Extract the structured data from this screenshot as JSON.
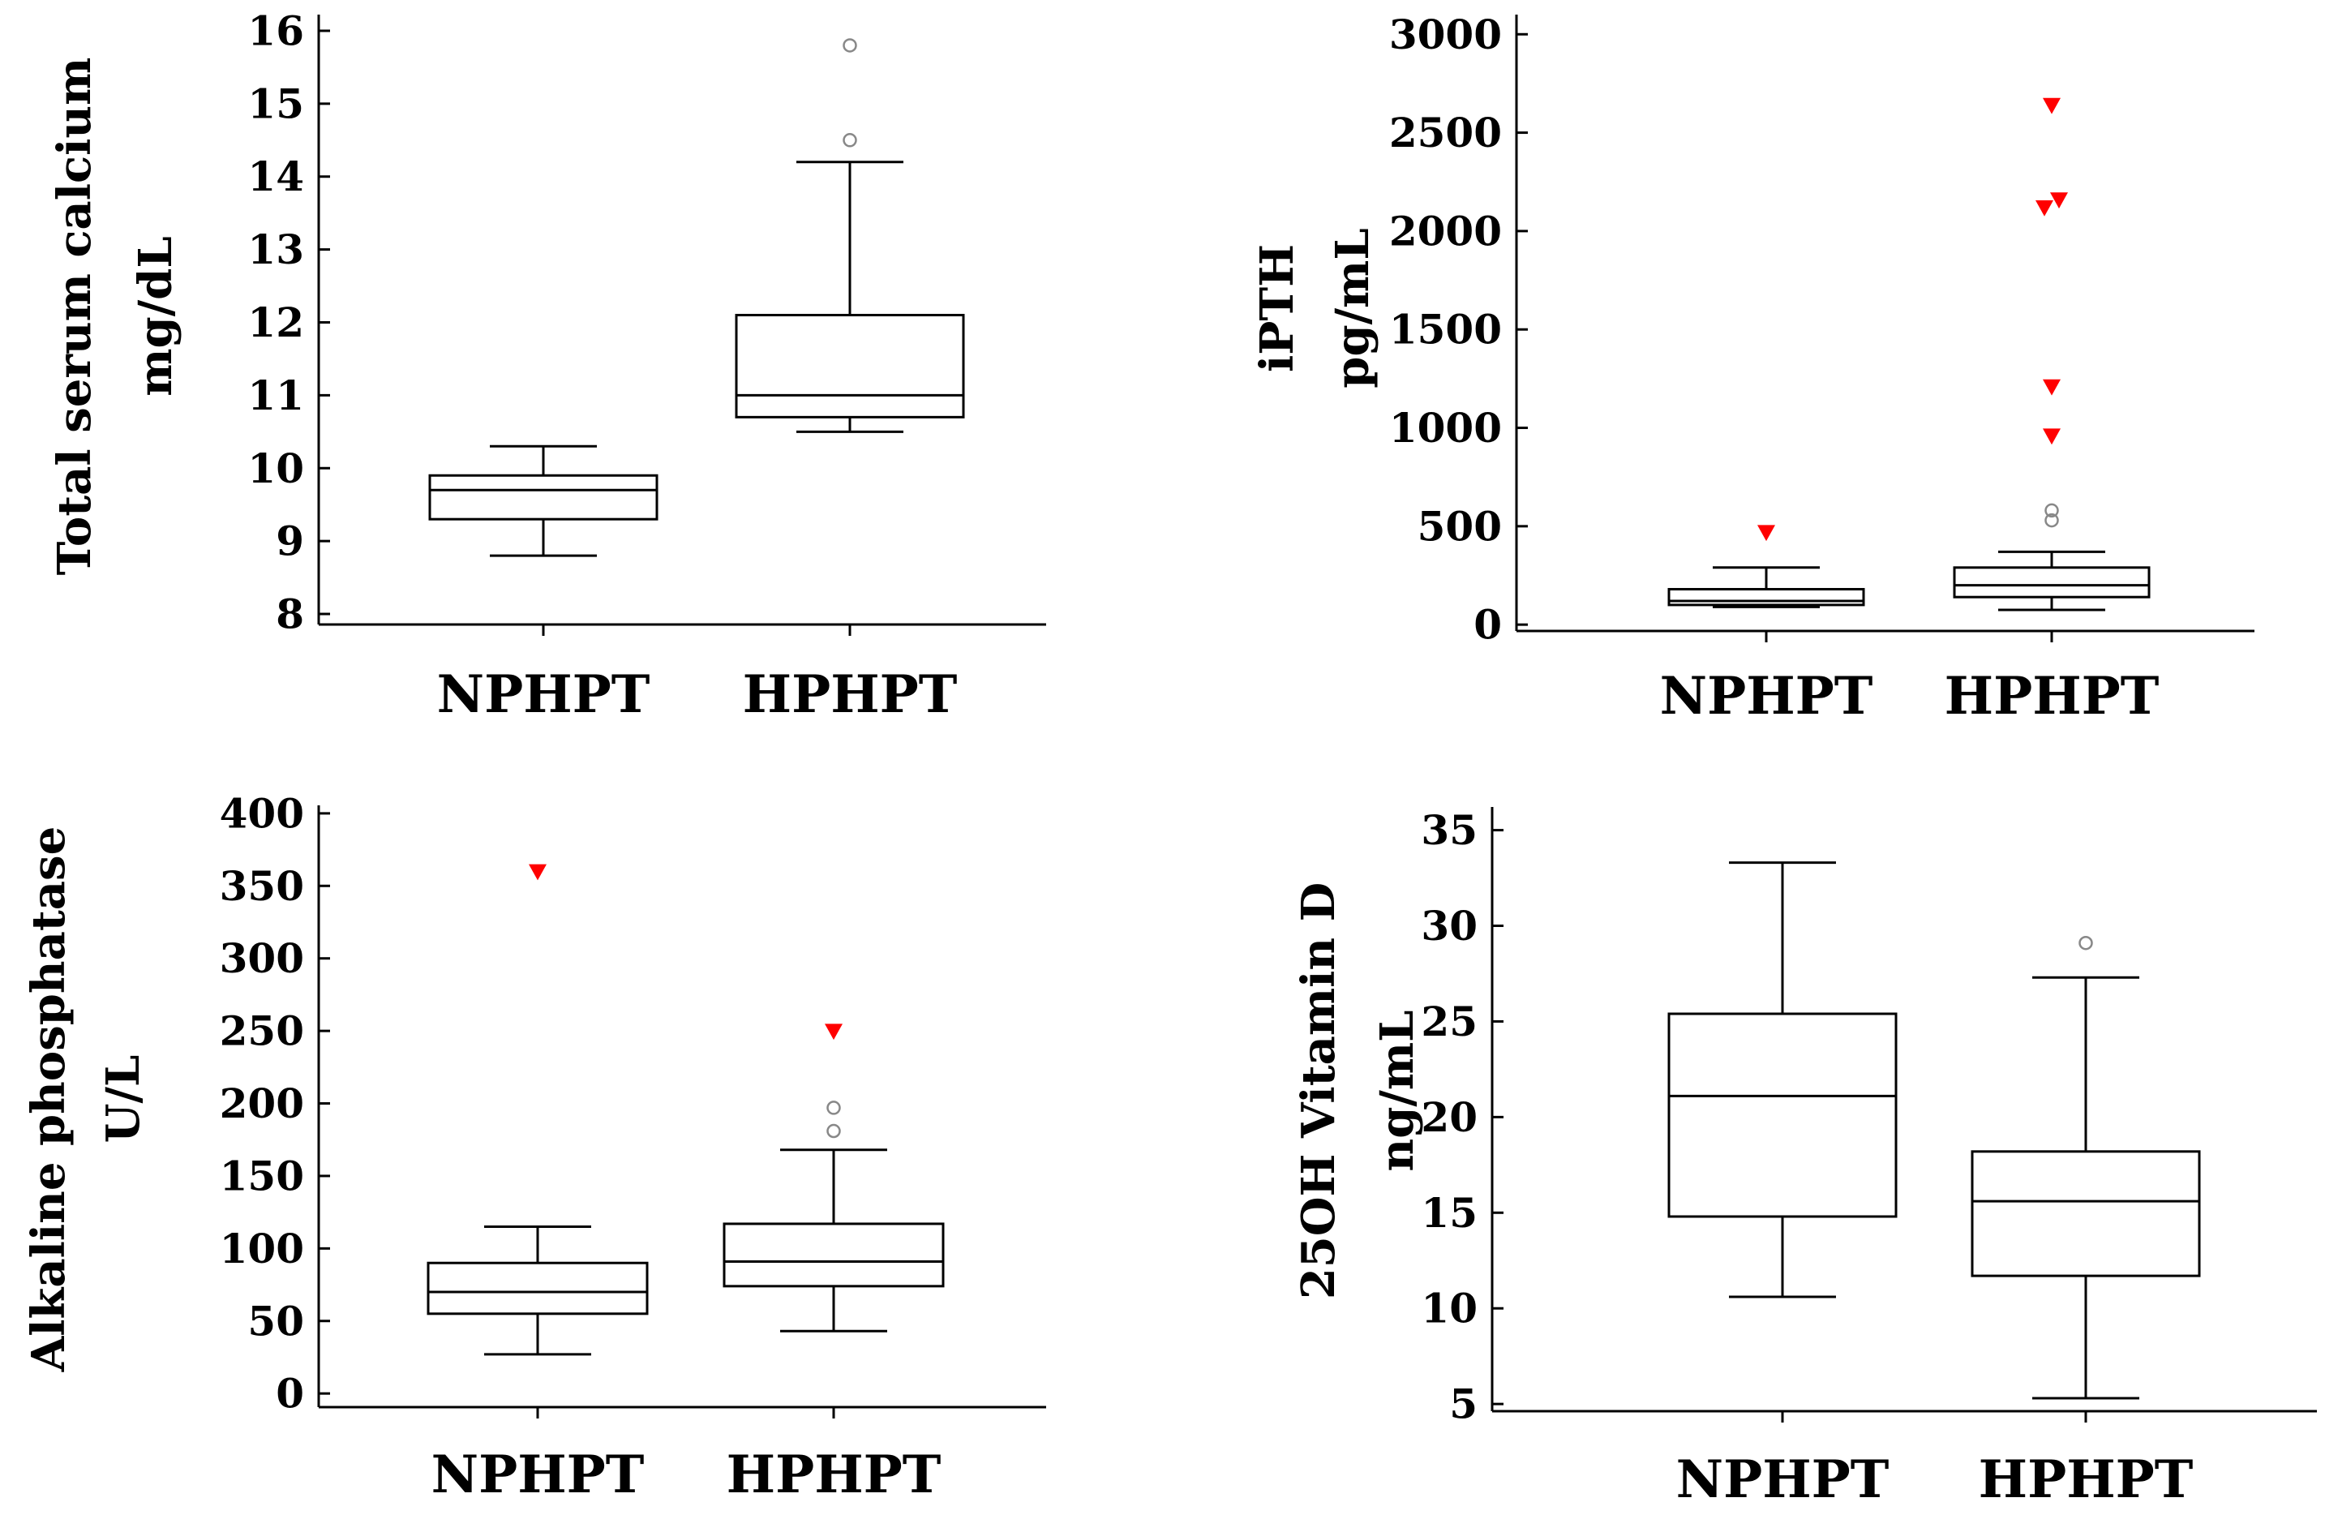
{
  "chart_data": [
    {
      "type": "boxplot",
      "ylabel_line1": "Total serum calcium",
      "ylabel_line2": "mg/dL",
      "categories": [
        "NPHPT",
        "HPHPT"
      ],
      "ylim": [
        7.8,
        16.2
      ],
      "yticks": [
        8,
        9,
        10,
        11,
        12,
        13,
        14,
        15,
        16
      ],
      "boxes": [
        {
          "name": "NPHPT",
          "whisker_low": 8.8,
          "q1": 9.3,
          "median": 9.7,
          "q3": 9.9,
          "whisker_high": 10.3
        },
        {
          "name": "HPHPT",
          "whisker_low": 10.5,
          "q1": 10.7,
          "median": 11.0,
          "q3": 12.1,
          "whisker_high": 14.2
        }
      ],
      "outliers": [
        {
          "category": "HPHPT",
          "value": 14.5,
          "kind": "circle"
        },
        {
          "category": "HPHPT",
          "value": 15.8,
          "kind": "circle"
        }
      ],
      "colors": {
        "far_outlier": "#ff0000",
        "outlier": "#888888",
        "line": "#000000"
      }
    },
    {
      "type": "boxplot",
      "ylabel_line1": "iPTH",
      "ylabel_line2": "pg/mL",
      "categories": [
        "NPHPT",
        "HPHPT"
      ],
      "ylim": [
        -90,
        3100
      ],
      "yticks": [
        0,
        500,
        1000,
        1500,
        2000,
        2500,
        3000
      ],
      "boxes": [
        {
          "name": "NPHPT",
          "whisker_low": 90,
          "q1": 100,
          "median": 120,
          "q3": 180,
          "whisker_high": 290
        },
        {
          "name": "HPHPT",
          "whisker_low": 75,
          "q1": 140,
          "median": 200,
          "q3": 290,
          "whisker_high": 370
        }
      ],
      "outliers": [
        {
          "category": "NPHPT",
          "value": 470,
          "kind": "triangle"
        },
        {
          "category": "HPHPT",
          "value": 530,
          "kind": "circle"
        },
        {
          "category": "HPHPT",
          "value": 580,
          "kind": "circle"
        },
        {
          "category": "HPHPT",
          "value": 960,
          "kind": "triangle"
        },
        {
          "category": "HPHPT",
          "value": 1210,
          "kind": "triangle"
        },
        {
          "category": "HPHPT",
          "value": 2120,
          "kind": "triangle",
          "offset": -0.25
        },
        {
          "category": "HPHPT",
          "value": 2160,
          "kind": "triangle",
          "offset": 0.25
        },
        {
          "category": "HPHPT",
          "value": 2640,
          "kind": "triangle"
        }
      ],
      "colors": {
        "far_outlier": "#ff0000",
        "outlier": "#888888",
        "line": "#000000"
      }
    },
    {
      "type": "boxplot",
      "ylabel_line1": "Alkaline phosphatase",
      "ylabel_line2": "U/L",
      "categories": [
        "NPHPT",
        "HPHPT"
      ],
      "ylim": [
        -15,
        410
      ],
      "yticks": [
        0,
        50,
        100,
        150,
        200,
        250,
        300,
        350,
        400
      ],
      "boxes": [
        {
          "name": "NPHPT",
          "whisker_low": 27,
          "q1": 55,
          "median": 70,
          "q3": 90,
          "whisker_high": 115
        },
        {
          "name": "HPHPT",
          "whisker_low": 43,
          "q1": 74,
          "median": 91,
          "q3": 117,
          "whisker_high": 168
        }
      ],
      "outliers": [
        {
          "category": "NPHPT",
          "value": 360,
          "kind": "triangle"
        },
        {
          "category": "HPHPT",
          "value": 181,
          "kind": "circle"
        },
        {
          "category": "HPHPT",
          "value": 197,
          "kind": "circle"
        },
        {
          "category": "HPHPT",
          "value": 250,
          "kind": "triangle"
        }
      ],
      "colors": {
        "far_outlier": "#ff0000",
        "outlier": "#888888",
        "line": "#000000"
      }
    },
    {
      "type": "boxplot",
      "ylabel_line1": "25OH Vitamin D",
      "ylabel_line2": "ng/mL",
      "categories": [
        "NPHPT",
        "HPHPT"
      ],
      "ylim": [
        4.2,
        36
      ],
      "yticks": [
        5,
        10,
        15,
        20,
        25,
        30,
        35
      ],
      "boxes": [
        {
          "name": "NPHPT",
          "whisker_low": 10.6,
          "q1": 14.8,
          "median": 21.1,
          "q3": 25.4,
          "whisker_high": 33.3
        },
        {
          "name": "HPHPT",
          "whisker_low": 5.3,
          "q1": 11.7,
          "median": 15.6,
          "q3": 18.2,
          "whisker_high": 27.3
        }
      ],
      "outliers": [
        {
          "category": "HPHPT",
          "value": 29.1,
          "kind": "circle"
        }
      ],
      "colors": {
        "far_outlier": "#ff0000",
        "outlier": "#888888",
        "line": "#000000"
      }
    }
  ]
}
